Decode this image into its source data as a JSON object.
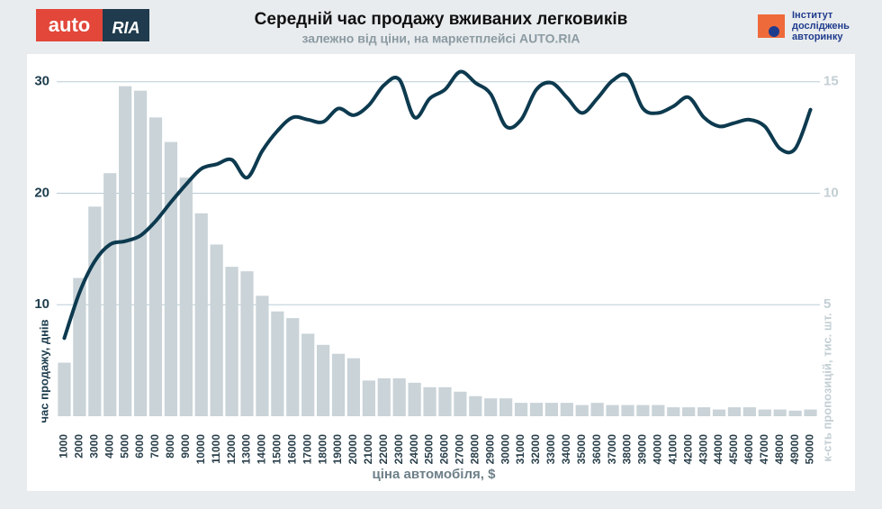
{
  "logos": {
    "autoria": [
      "auto",
      "RIA"
    ],
    "institute": [
      "Інститут",
      "досліджень",
      "авторинку"
    ]
  },
  "chart_data": {
    "type": "bar-line",
    "title": "Середній час продажу вживаних легковиків",
    "subtitle": "залежно від ціни, на маркетплейсі AUTO.RIA",
    "x_label": "ціна автомобіля, $",
    "y_label": "час продажу, днів",
    "y2_label": "к-сть пропозицій, тис. шт.",
    "categories": [
      "1000",
      "2000",
      "3000",
      "4000",
      "5000",
      "6000",
      "7000",
      "8000",
      "9000",
      "10000",
      "11000",
      "12000",
      "13000",
      "14000",
      "15000",
      "16000",
      "17000",
      "18000",
      "19000",
      "20000",
      "21000",
      "22000",
      "23000",
      "24000",
      "25000",
      "26000",
      "27000",
      "28000",
      "29000",
      "30000",
      "31000",
      "32000",
      "33000",
      "34000",
      "35000",
      "36000",
      "37000",
      "38000",
      "39000",
      "40000",
      "41000",
      "42000",
      "43000",
      "44000",
      "45000",
      "46000",
      "47000",
      "48000",
      "49000",
      "50000"
    ],
    "series": [
      {
        "name": "к-сть пропозицій",
        "type": "bar",
        "axis": "y2",
        "color": "#c9d3d8",
        "values": [
          2.4,
          6.2,
          9.4,
          10.9,
          14.8,
          14.6,
          13.4,
          12.3,
          10.7,
          9.1,
          7.7,
          6.7,
          6.5,
          5.4,
          4.7,
          4.4,
          3.7,
          3.2,
          2.8,
          2.6,
          1.6,
          1.7,
          1.7,
          1.5,
          1.3,
          1.3,
          1.1,
          0.9,
          0.8,
          0.8,
          0.6,
          0.6,
          0.6,
          0.6,
          0.5,
          0.6,
          0.5,
          0.5,
          0.5,
          0.5,
          0.4,
          0.4,
          0.4,
          0.3,
          0.4,
          0.4,
          0.3,
          0.3,
          0.25,
          0.3
        ]
      },
      {
        "name": "час продажу",
        "type": "line",
        "axis": "y",
        "color": "#0d3a4f",
        "values": [
          7.0,
          11.1,
          13.9,
          15.4,
          15.7,
          16.2,
          17.5,
          19.2,
          20.8,
          22.2,
          22.6,
          23.0,
          21.4,
          23.8,
          25.6,
          26.8,
          26.6,
          26.4,
          27.6,
          27.0,
          27.9,
          29.7,
          30.2,
          26.8,
          28.5,
          29.3,
          30.9,
          29.9,
          28.9,
          26.0,
          26.6,
          29.3,
          29.9,
          28.6,
          27.2,
          28.5,
          30.1,
          30.5,
          27.6,
          27.2,
          27.8,
          28.6,
          26.8,
          26.0,
          26.3,
          26.6,
          26.0,
          24.0,
          24.0,
          27.5
        ]
      }
    ],
    "ylim": [
      0,
      32
    ],
    "yticks": [
      10,
      20,
      30
    ],
    "y2lim": [
      0,
      16
    ],
    "y2ticks": [
      5,
      10,
      15
    ],
    "grid": true
  }
}
